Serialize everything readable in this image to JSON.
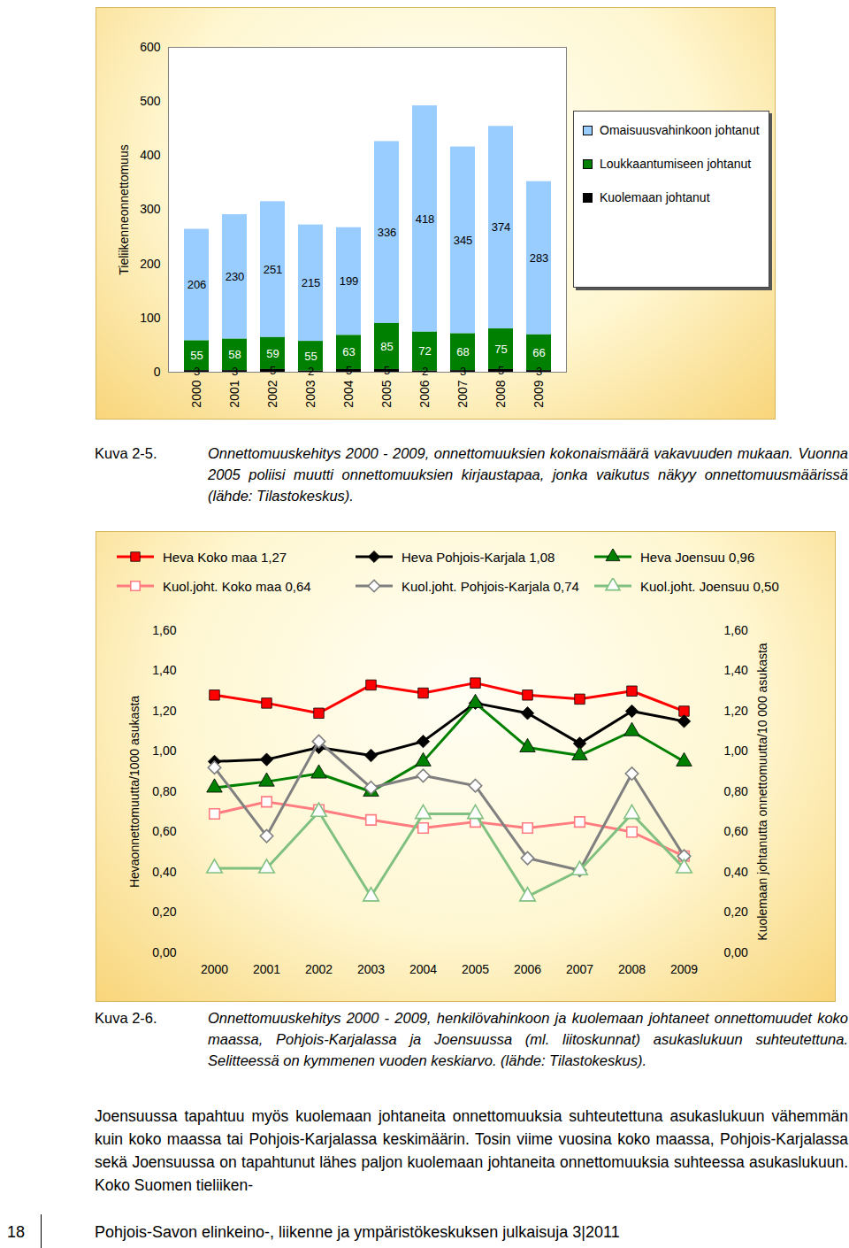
{
  "chart_data": [
    {
      "type": "bar",
      "stacked": true,
      "data_labels": true,
      "legend": "right",
      "grid": false,
      "ylabel": "Tieliikenneonnettomuus",
      "categories": [
        "2000",
        "2001",
        "2002",
        "2003",
        "2004",
        "2005",
        "2006",
        "2007",
        "2008",
        "2009"
      ],
      "ylim": [
        0,
        600
      ],
      "yticks": [
        0,
        100,
        200,
        300,
        400,
        500,
        600
      ],
      "series": [
        {
          "name": "Omaisuusvahinkoon johtanut",
          "color": "#99ccff",
          "values": [
            206,
            230,
            251,
            215,
            199,
            336,
            418,
            345,
            374,
            283
          ]
        },
        {
          "name": "Loukkaantumiseen johtanut",
          "color": "#008000",
          "values": [
            55,
            58,
            59,
            55,
            63,
            85,
            72,
            68,
            75,
            66
          ]
        },
        {
          "name": "Kuolemaan johtanut",
          "color": "#000000",
          "values": [
            3,
            3,
            5,
            2,
            5,
            5,
            2,
            3,
            5,
            3
          ]
        }
      ]
    },
    {
      "type": "line",
      "legend": "top",
      "grid": false,
      "ylabel": "Hevaonnettomuutta/1000 asukasta",
      "y2label": "Kuolemaan johtanutta onnettomuutta/10 000 asukasta",
      "categories": [
        "2000",
        "2001",
        "2002",
        "2003",
        "2004",
        "2005",
        "2006",
        "2007",
        "2008",
        "2009"
      ],
      "ylim": [
        0,
        1.6
      ],
      "yticks": [
        {
          "value": 0,
          "label": "0,00"
        },
        {
          "value": 0.2,
          "label": "0,20"
        },
        {
          "value": 0.4,
          "label": "0,40"
        },
        {
          "value": 0.6,
          "label": "0,60"
        },
        {
          "value": 0.8,
          "label": "0,80"
        },
        {
          "value": 1,
          "label": "1,00"
        },
        {
          "value": 1.2,
          "label": "1,20"
        },
        {
          "value": 1.4,
          "label": "1,40"
        },
        {
          "value": 1.6,
          "label": "1,60"
        }
      ],
      "y2lim": [
        0,
        1.6
      ],
      "y2ticks": [
        {
          "value": 0,
          "label": "0,00"
        },
        {
          "value": 0.2,
          "label": "0,20"
        },
        {
          "value": 0.4,
          "label": "0,40"
        },
        {
          "value": 0.6,
          "label": "0,60"
        },
        {
          "value": 0.8,
          "label": "0,80"
        },
        {
          "value": 1,
          "label": "1,00"
        },
        {
          "value": 1.2,
          "label": "1,20"
        },
        {
          "value": 1.4,
          "label": "1,40"
        },
        {
          "value": 1.6,
          "label": "1,60"
        }
      ],
      "series": [
        {
          "name": "Heva Koko maa 1,27",
          "color": "#ff0000",
          "marker": "square",
          "line_style": "solid",
          "values": [
            1.28,
            1.24,
            1.19,
            1.33,
            1.29,
            1.34,
            1.28,
            1.26,
            1.3,
            1.2
          ]
        },
        {
          "name": "Heva Pohjois-Karjala 1,08",
          "color": "#000000",
          "marker": "diamond",
          "line_style": "solid",
          "values": [
            0.95,
            0.96,
            1.02,
            0.98,
            1.05,
            1.24,
            1.19,
            1.04,
            1.2,
            1.15
          ]
        },
        {
          "name": "Heva Joensuu 0,96",
          "color": "#008000",
          "marker": "triangle",
          "line_style": "solid",
          "values": [
            0.82,
            0.85,
            0.89,
            0.8,
            0.95,
            1.24,
            1.02,
            0.98,
            1.1,
            0.95
          ]
        },
        {
          "name": "Kuol.joht. Koko maa 0,64",
          "color": "#ff7c80",
          "marker": "square_open",
          "line_style": "solid",
          "axis": "y2",
          "values": [
            0.69,
            0.75,
            0.71,
            0.66,
            0.62,
            0.65,
            0.62,
            0.65,
            0.6,
            0.48
          ]
        },
        {
          "name": "Kuol.joht. Pohjois-Karjala 0,74",
          "color": "#808080",
          "marker": "diamond_open",
          "line_style": "solid",
          "axis": "y2",
          "values": [
            0.92,
            0.58,
            1.05,
            0.82,
            0.88,
            0.83,
            0.47,
            0.41,
            0.89,
            0.48
          ]
        },
        {
          "name": "Kuol.joht. Joensuu 0,50",
          "color": "#80c080",
          "marker": "triangle_open",
          "line_style": "solid",
          "axis": "y2",
          "values": [
            0.42,
            0.42,
            0.7,
            0.28,
            0.69,
            0.69,
            0.28,
            0.41,
            0.69,
            0.42
          ]
        }
      ]
    }
  ],
  "captions": [
    {
      "label": "Kuva 2-5.",
      "text": "Onnettomuuskehitys 2000 - 2009, onnettomuuksien kokonaismäärä vakavuuden mukaan. Vuonna 2005 poliisi muutti onnettomuuksien kirjaustapaa, jonka vaikutus näkyy onnettomuusmäärissä (lähde: Tilastokeskus)."
    },
    {
      "label": "Kuva 2-6.",
      "text": "Onnettomuuskehitys 2000 - 2009, henkilövahinkoon ja kuolemaan johtaneet onnettomuudet koko maassa, Pohjois-Karjalassa ja Joensuussa (ml. liitoskunnat) asukaslukuun suhteutettuna. Selitteessä on kymmenen vuoden keskiarvo. (lähde: Tilastokeskus)."
    }
  ],
  "paragraph": "Joensuussa tapahtuu myös kuolemaan johtaneita onnettomuuksia suhteutettuna asukaslukuun vähemmän kuin koko maassa tai Pohjois-Karjalassa keskimäärin. Tosin viime vuosina koko maassa, Pohjois-Karjalassa sekä Joensuussa on tapahtunut lähes paljon kuolemaan johtaneita onnettomuuksia suhteessa asukaslukuun. Koko Suomen tieliiken-",
  "footer": {
    "page": "18",
    "text": "Pohjois-Savon elinkeino-, liikenne ja ympäristökeskuksen julkaisuja 3|2011"
  }
}
